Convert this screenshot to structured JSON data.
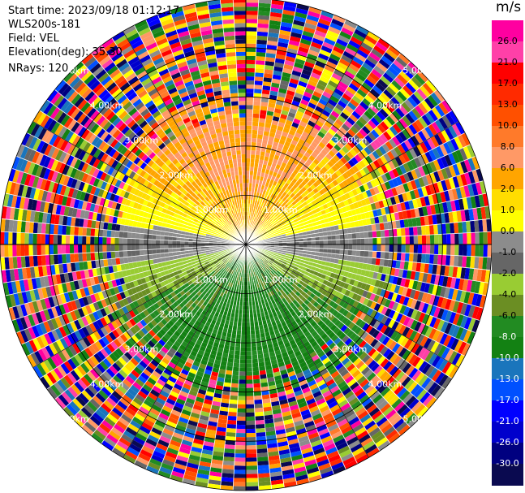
{
  "header": {
    "start_time": "Start time: 2023/09/18 01:12:17",
    "instrument": "WLS200s-181",
    "field": "Field: VEL",
    "elevation": "Elevation(deg): 35.30",
    "nrays": "NRays: 120"
  },
  "colorbar": {
    "units": "m/s",
    "ticks": [
      "26.0",
      "21.0",
      "17.0",
      "13.0",
      "10.0",
      "8.0",
      "6.0",
      "2.0",
      "1.0",
      "0.0",
      "-1.0",
      "-2.0",
      "-4.0",
      "-6.0",
      "-8.0",
      "-10.0",
      "-13.0",
      "-17.0",
      "-21.0",
      "-26.0",
      "-30.0"
    ],
    "colors": [
      "#ff00a0",
      "#ff40a8",
      "#ff0000",
      "#ff2a00",
      "#ff5000",
      "#ff7a2a",
      "#ff9966",
      "#ffa500",
      "#ffdd00",
      "#ffff00",
      "#8c8c8c",
      "#666666",
      "#99cc33",
      "#6b8e23",
      "#228b22",
      "#138113",
      "#1a75bc",
      "#0050ff",
      "#0000ff",
      "#0000cc",
      "#000080",
      "#0a0a50"
    ]
  },
  "chart_data": {
    "type": "heatmap",
    "projection": "polar PPI",
    "rays": 120,
    "range_ring_labels": [
      "1.00km",
      "2.00km",
      "3.00km",
      "4.00km",
      "5.00km"
    ],
    "max_range_km": 5.0,
    "velocity_pattern": {
      "north_sector": "positive (yellow/orange, 2 to 8 m/s)",
      "south_sector": "negative (green, -2 to -8 m/s)",
      "east_west": "near zero (gray)",
      "beyond_about_3km": "noise (all colors)"
    }
  }
}
